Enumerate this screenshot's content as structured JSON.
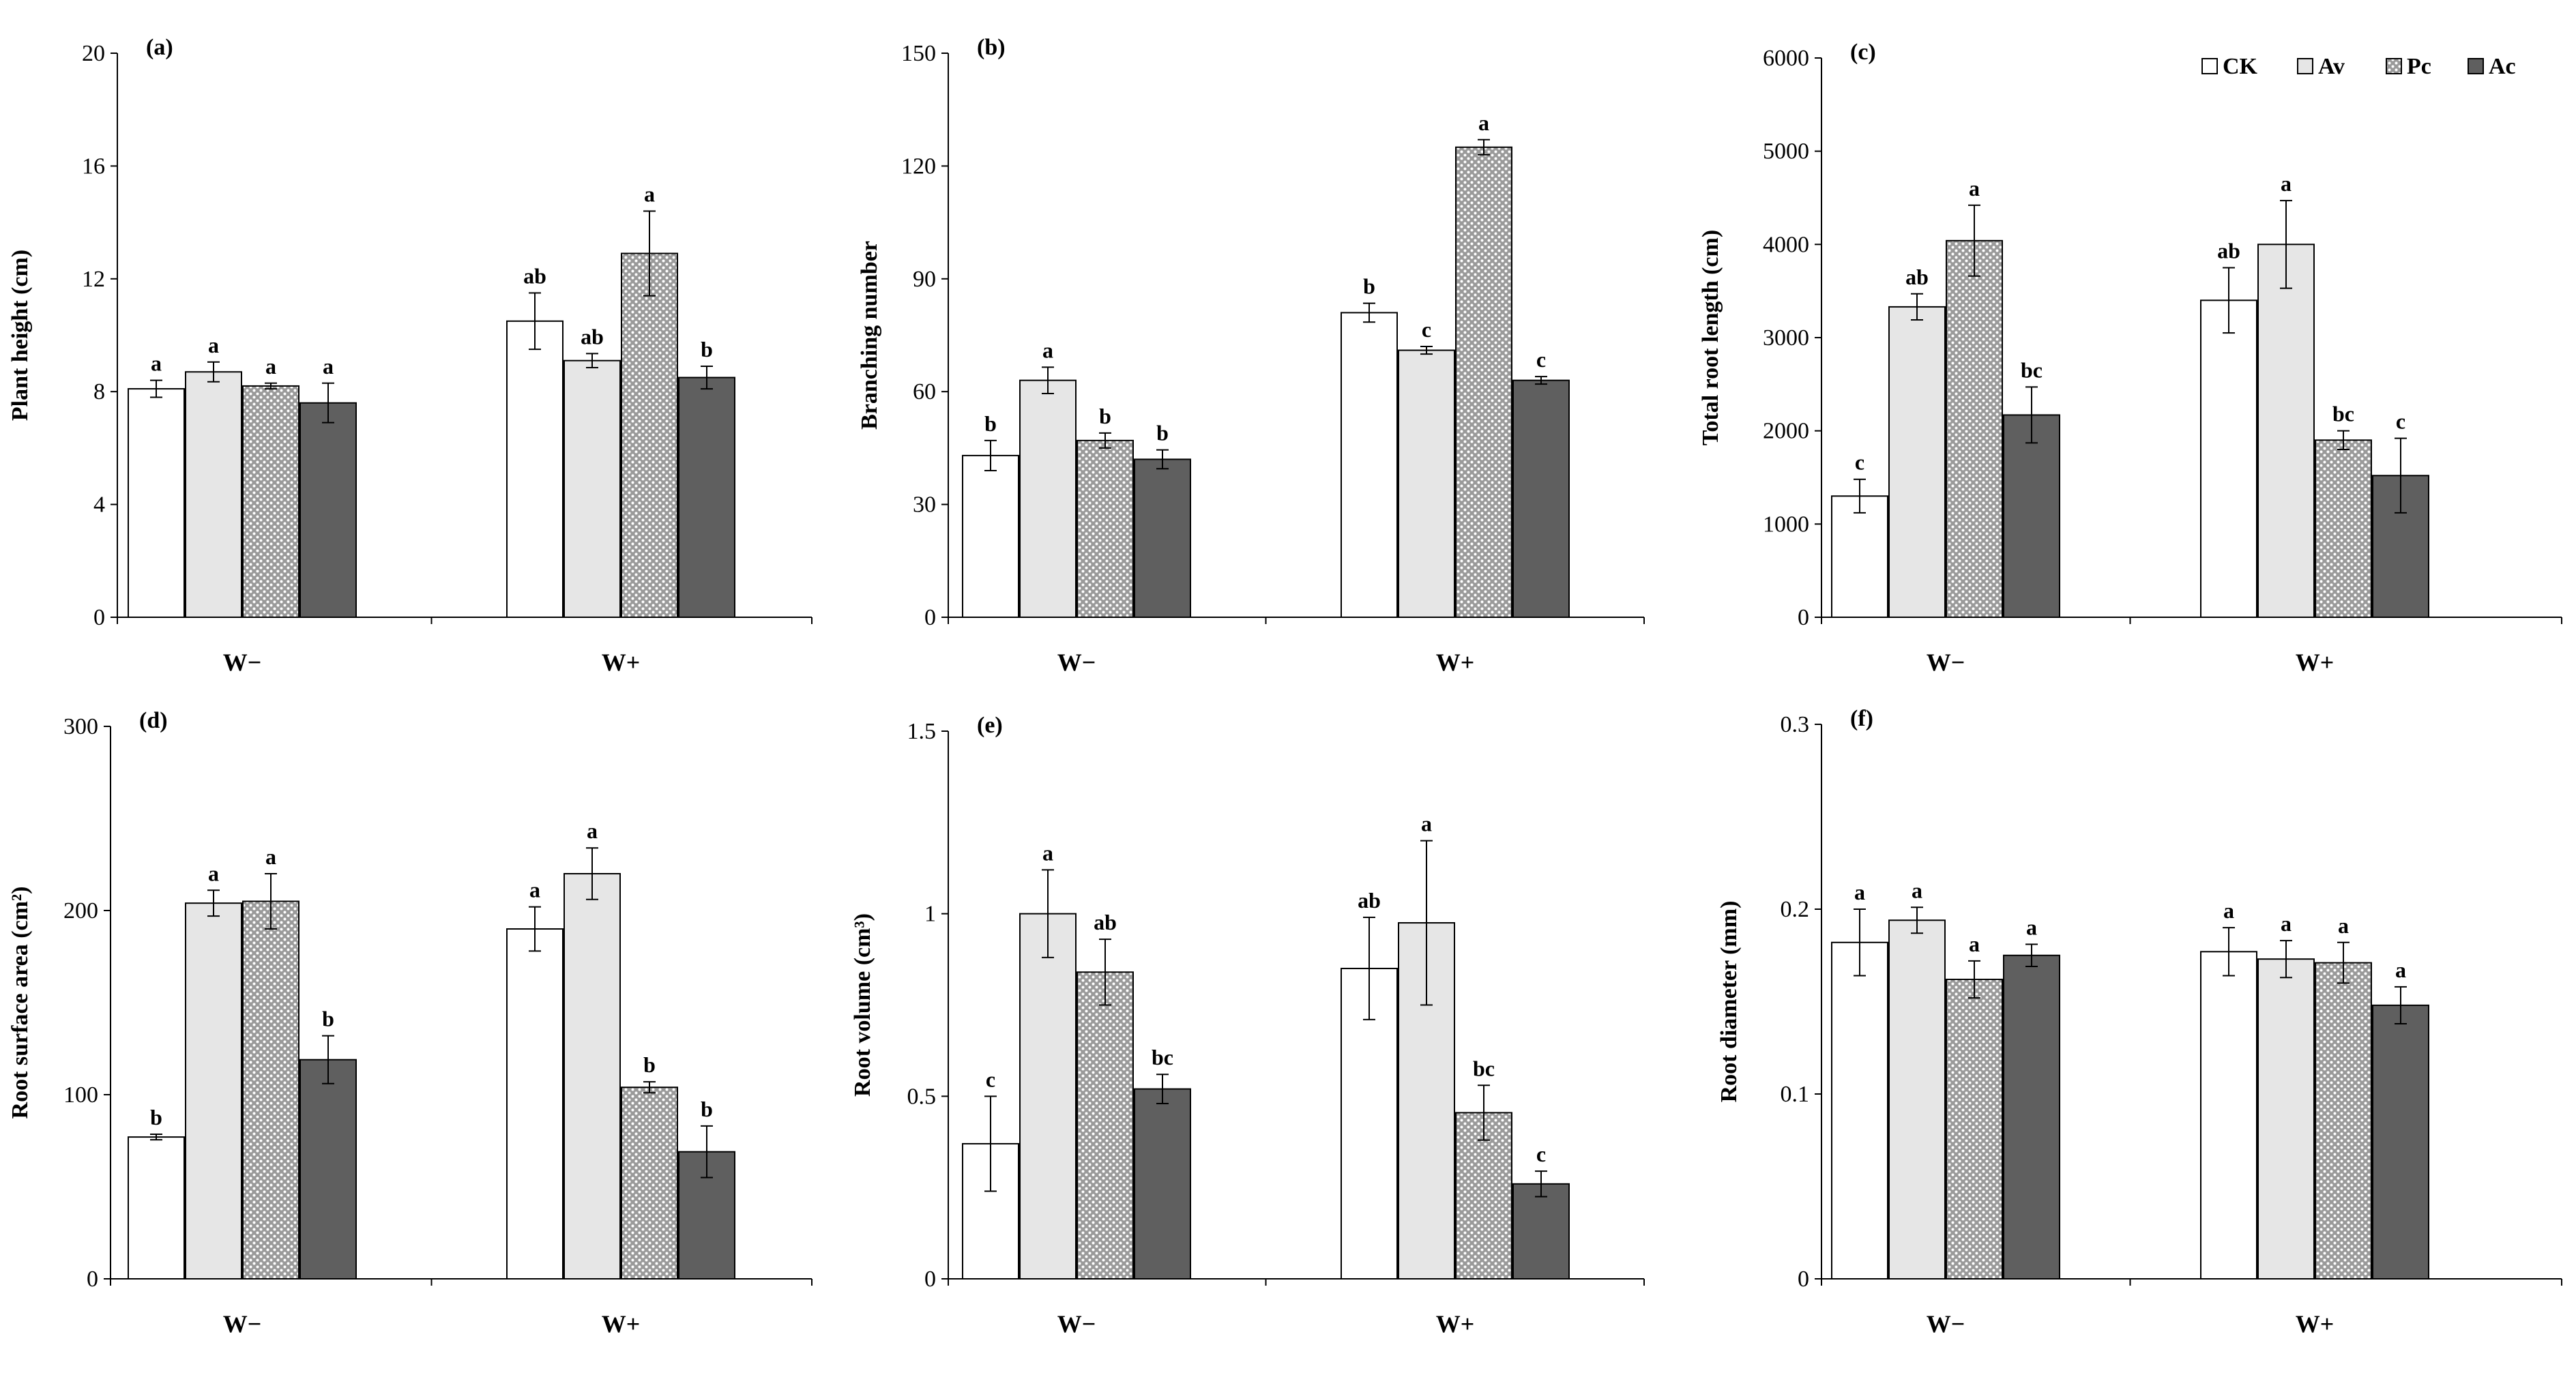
{
  "legend": {
    "items": [
      {
        "name": "CK",
        "color": "#ffffff",
        "pattern": "none"
      },
      {
        "name": "Av",
        "color": "#e6e6e6",
        "pattern": "none"
      },
      {
        "name": "Pc",
        "color": "#a8a8a8",
        "pattern": "dots"
      },
      {
        "name": "Ac",
        "color": "#5f5f5f",
        "pattern": "none"
      }
    ]
  },
  "chart_data": [
    {
      "panel": "(a)",
      "type": "bar",
      "ylabel": "Plant height (cm)",
      "categories": [
        "W−",
        "W+"
      ],
      "ylim": [
        0,
        20
      ],
      "yticks": [
        0,
        4,
        8,
        12,
        16,
        20
      ],
      "ytick_labels": [
        "0",
        "4",
        "8",
        "12",
        "16",
        "20"
      ],
      "series": [
        {
          "name": "CK",
          "values": [
            8.1,
            10.5
          ],
          "errors": [
            0.3,
            1.0
          ],
          "letters": [
            "a",
            "ab"
          ]
        },
        {
          "name": "Av",
          "values": [
            8.7,
            9.1
          ],
          "errors": [
            0.35,
            0.25
          ],
          "letters": [
            "a",
            "ab"
          ]
        },
        {
          "name": "Pc",
          "values": [
            8.2,
            12.9
          ],
          "errors": [
            0.1,
            1.5
          ],
          "letters": [
            "a",
            "a"
          ]
        },
        {
          "name": "Ac",
          "values": [
            7.6,
            8.5
          ],
          "errors": [
            0.7,
            0.4
          ],
          "letters": [
            "a",
            "b"
          ]
        }
      ]
    },
    {
      "panel": "(b)",
      "type": "bar",
      "ylabel": "Branching number",
      "categories": [
        "W−",
        "W+"
      ],
      "ylim": [
        0,
        150
      ],
      "yticks": [
        0,
        30,
        60,
        90,
        120,
        150
      ],
      "ytick_labels": [
        "0",
        "30",
        "60",
        "90",
        "120",
        "150"
      ],
      "series": [
        {
          "name": "CK",
          "values": [
            43,
            81
          ],
          "errors": [
            4,
            2.5
          ],
          "letters": [
            "b",
            "b"
          ]
        },
        {
          "name": "Av",
          "values": [
            63,
            71
          ],
          "errors": [
            3.5,
            1
          ],
          "letters": [
            "a",
            "c"
          ]
        },
        {
          "name": "Pc",
          "values": [
            47,
            125
          ],
          "errors": [
            2,
            2
          ],
          "letters": [
            "b",
            "a"
          ]
        },
        {
          "name": "Ac",
          "values": [
            42,
            63
          ],
          "errors": [
            2.5,
            1
          ],
          "letters": [
            "b",
            "c"
          ]
        }
      ]
    },
    {
      "panel": "(c)",
      "type": "bar",
      "ylabel": "Total root length (cm)",
      "categories": [
        "W−",
        "W+"
      ],
      "ylim": [
        0,
        6000
      ],
      "yticks": [
        0,
        1000,
        2000,
        3000,
        4000,
        5000,
        6000
      ],
      "ytick_labels": [
        "0",
        "1000",
        "2000",
        "3000",
        "4000",
        "5000",
        "6000"
      ],
      "series": [
        {
          "name": "CK",
          "values": [
            1300,
            3400
          ],
          "errors": [
            180,
            350
          ],
          "letters": [
            "c",
            "ab"
          ]
        },
        {
          "name": "Av",
          "values": [
            3330,
            4000
          ],
          "errors": [
            140,
            470
          ],
          "letters": [
            "ab",
            "a"
          ]
        },
        {
          "name": "Pc",
          "values": [
            4040,
            1900
          ],
          "errors": [
            380,
            100
          ],
          "letters": [
            "a",
            "bc"
          ]
        },
        {
          "name": "Ac",
          "values": [
            2170,
            1520
          ],
          "errors": [
            300,
            400
          ],
          "letters": [
            "bc",
            "c"
          ]
        }
      ]
    },
    {
      "panel": "(d)",
      "type": "bar",
      "ylabel": "Root surface area (cm²)",
      "categories": [
        "W−",
        "W+"
      ],
      "ylim": [
        0,
        300
      ],
      "yticks": [
        0,
        100,
        200,
        300
      ],
      "ytick_labels": [
        "0",
        "100",
        "200",
        "300"
      ],
      "series": [
        {
          "name": "CK",
          "values": [
            77,
            190
          ],
          "errors": [
            1.5,
            12
          ],
          "letters": [
            "b",
            "a"
          ]
        },
        {
          "name": "Av",
          "values": [
            204,
            220
          ],
          "errors": [
            7,
            14
          ],
          "letters": [
            "a",
            "a"
          ]
        },
        {
          "name": "Pc",
          "values": [
            205,
            104
          ],
          "errors": [
            15,
            3
          ],
          "letters": [
            "a",
            "b"
          ]
        },
        {
          "name": "Ac",
          "values": [
            119,
            69
          ],
          "errors": [
            13,
            14
          ],
          "letters": [
            "b",
            "b"
          ]
        }
      ]
    },
    {
      "panel": "(e)",
      "type": "bar",
      "ylabel": "Root volume (cm³)",
      "categories": [
        "W−",
        "W+"
      ],
      "ylim": [
        0,
        1.5
      ],
      "yticks": [
        0,
        0.5,
        1,
        1.5
      ],
      "ytick_labels": [
        "0",
        "0.5",
        "1",
        "1.5"
      ],
      "series": [
        {
          "name": "CK",
          "values": [
            0.37,
            0.85
          ],
          "errors": [
            0.13,
            0.14
          ],
          "letters": [
            "c",
            "ab"
          ]
        },
        {
          "name": "Av",
          "values": [
            1.0,
            0.975
          ],
          "errors": [
            0.12,
            0.225
          ],
          "letters": [
            "a",
            "a"
          ]
        },
        {
          "name": "Pc",
          "values": [
            0.84,
            0.455
          ],
          "errors": [
            0.09,
            0.075
          ],
          "letters": [
            "ab",
            "bc"
          ]
        },
        {
          "name": "Ac",
          "values": [
            0.52,
            0.26
          ],
          "errors": [
            0.04,
            0.035
          ],
          "letters": [
            "bc",
            "c"
          ]
        }
      ]
    },
    {
      "panel": "(f)",
      "type": "bar",
      "ylabel": "Root diameter (mm)",
      "categories": [
        "W−",
        "W+"
      ],
      "ylim": [
        0,
        0.3
      ],
      "yticks": [
        0,
        0.1,
        0.2,
        0.3
      ],
      "ytick_labels": [
        "0",
        "0.1",
        "0.2",
        "0.3"
      ],
      "series": [
        {
          "name": "CK",
          "values": [
            0.182,
            0.177
          ],
          "errors": [
            0.018,
            0.013
          ],
          "letters": [
            "a",
            "a"
          ]
        },
        {
          "name": "Av",
          "values": [
            0.194,
            0.173
          ],
          "errors": [
            0.007,
            0.01
          ],
          "letters": [
            "a",
            "a"
          ]
        },
        {
          "name": "Pc",
          "values": [
            0.162,
            0.171
          ],
          "errors": [
            0.01,
            0.011
          ],
          "letters": [
            "a",
            "a"
          ]
        },
        {
          "name": "Ac",
          "values": [
            0.175,
            0.148
          ],
          "errors": [
            0.006,
            0.01
          ],
          "letters": [
            "a",
            "a"
          ]
        }
      ]
    }
  ]
}
